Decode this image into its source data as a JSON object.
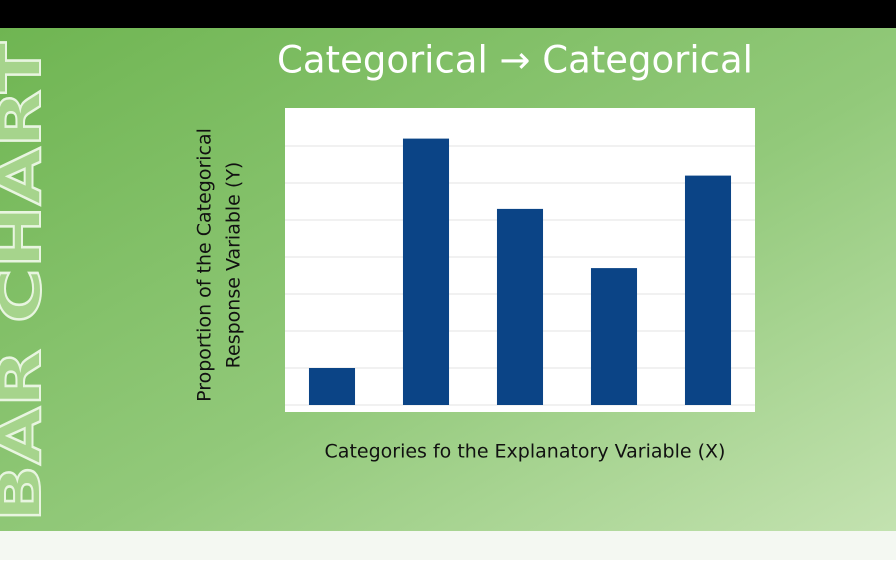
{
  "side_label": "BAR CHART",
  "chart_data": {
    "type": "bar",
    "title": "Categorical → Categorical",
    "y_label": [
      "Proportion of the Categorical",
      "Response Variable (Y)"
    ],
    "x_label": "Categories fo the Explanatory Variable (X)",
    "categories": [
      null,
      null,
      null,
      null,
      null
    ],
    "values": [
      1,
      7.2,
      5.3,
      3.7,
      6.2
    ],
    "color": "#0b4486",
    "ylim": [
      0,
      8
    ],
    "yticks": [
      0,
      1,
      2,
      3,
      4,
      5,
      6,
      7
    ],
    "grid": true
  }
}
